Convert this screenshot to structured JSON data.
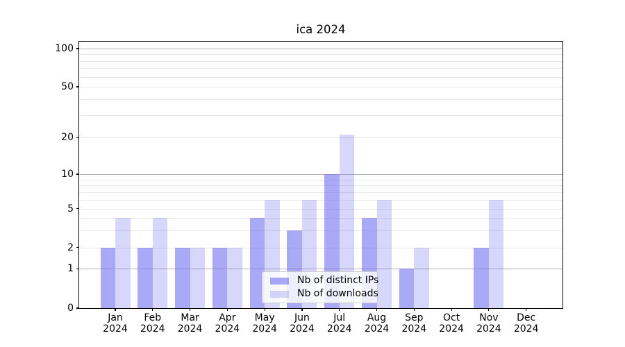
{
  "title": "ica 2024",
  "chart_data": {
    "type": "bar",
    "title": "ica 2024",
    "xlabel": "",
    "ylabel": "",
    "y_scale": "symlog",
    "y_ticks": [
      0,
      1,
      2,
      5,
      10,
      20,
      50,
      100
    ],
    "y_tick_labels": [
      "0",
      "1",
      "2",
      "5",
      "10",
      "20",
      "50",
      "100"
    ],
    "ylim": [
      0,
      115
    ],
    "grid": true,
    "major_gridlines": [
      1,
      10,
      100
    ],
    "minor_gridlines": [
      2,
      3,
      4,
      5,
      6,
      7,
      8,
      9,
      20,
      30,
      40,
      50,
      60,
      70,
      80,
      90
    ],
    "categories": [
      "Jan 2024",
      "Feb 2024",
      "Mar 2024",
      "Apr 2024",
      "May 2024",
      "Jun 2024",
      "Jul 2024",
      "Aug 2024",
      "Sep 2024",
      "Oct 2024",
      "Nov 2024",
      "Dec 2024"
    ],
    "x_tick_labels": [
      {
        "month": "Jan",
        "year": "2024"
      },
      {
        "month": "Feb",
        "year": "2024"
      },
      {
        "month": "Mar",
        "year": "2024"
      },
      {
        "month": "Apr",
        "year": "2024"
      },
      {
        "month": "May",
        "year": "2024"
      },
      {
        "month": "Jun",
        "year": "2024"
      },
      {
        "month": "Jul",
        "year": "2024"
      },
      {
        "month": "Aug",
        "year": "2024"
      },
      {
        "month": "Sep",
        "year": "2024"
      },
      {
        "month": "Oct",
        "year": "2024"
      },
      {
        "month": "Nov",
        "year": "2024"
      },
      {
        "month": "Dec",
        "year": "2024"
      }
    ],
    "series": [
      {
        "name": "Nb of distinct IPs",
        "color": "rgba(106,106,240,0.58)",
        "values": [
          2,
          2,
          2,
          2,
          4,
          3,
          10,
          4,
          1,
          0,
          2,
          0
        ]
      },
      {
        "name": "Nb of downloads",
        "color": "rgba(106,106,240,0.27)",
        "values": [
          4,
          4,
          2,
          2,
          6,
          6,
          21,
          6,
          2,
          0,
          6,
          0
        ]
      }
    ],
    "legend_position": "lower center",
    "colors": {
      "major_grid": "#b3b3b3",
      "minor_grid": "#e7e7e7",
      "spine": "#000000",
      "background": "#ffffff"
    }
  }
}
